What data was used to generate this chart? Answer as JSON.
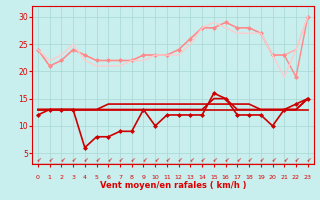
{
  "background_color": "#c8eeed",
  "grid_color": "#a8d8d4",
  "xlabel": "Vent moyen/en rafales ( km/h )",
  "xlabel_color": "#dd0000",
  "tick_color": "#dd0000",
  "x_ticks": [
    0,
    1,
    2,
    3,
    4,
    5,
    6,
    7,
    8,
    9,
    10,
    11,
    12,
    13,
    14,
    15,
    16,
    17,
    18,
    19,
    20,
    21,
    22,
    23
  ],
  "ylim": [
    3,
    32
  ],
  "xlim": [
    -0.5,
    23.5
  ],
  "yticks": [
    5,
    10,
    15,
    20,
    25,
    30
  ],
  "series": [
    {
      "color": "#ffaaaa",
      "linewidth": 1.0,
      "marker": null,
      "data": [
        24,
        21,
        22,
        24,
        23,
        22,
        22,
        22,
        22,
        23,
        23,
        23,
        24,
        26,
        28,
        28,
        29,
        28,
        28,
        27,
        23,
        23,
        24,
        30
      ]
    },
    {
      "color": "#ff8888",
      "linewidth": 1.0,
      "marker": "D",
      "markersize": 2,
      "data": [
        24,
        21,
        22,
        24,
        23,
        22,
        22,
        22,
        22,
        23,
        23,
        23,
        24,
        26,
        28,
        28,
        29,
        28,
        28,
        27,
        23,
        23,
        19,
        30
      ]
    },
    {
      "color": "#ffcccc",
      "linewidth": 1.0,
      "marker": null,
      "data": [
        24,
        22,
        23,
        25,
        22,
        21,
        21,
        21,
        22,
        22,
        23,
        23,
        23,
        25,
        28,
        29,
        28,
        27,
        27,
        27,
        23,
        19,
        24,
        30
      ]
    },
    {
      "color": "#cc0000",
      "linewidth": 1.2,
      "marker": "D",
      "markersize": 2,
      "data": [
        12,
        13,
        13,
        13,
        6,
        8,
        8,
        9,
        9,
        13,
        10,
        12,
        12,
        12,
        12,
        16,
        15,
        12,
        12,
        12,
        10,
        13,
        14,
        15
      ]
    },
    {
      "color": "#cc0000",
      "linewidth": 1.2,
      "marker": null,
      "data": [
        13,
        13,
        13,
        13,
        13,
        13,
        13,
        13,
        13,
        13,
        13,
        13,
        13,
        13,
        13,
        13,
        13,
        13,
        13,
        13,
        13,
        13,
        13,
        13
      ]
    },
    {
      "color": "#cc0000",
      "linewidth": 1.2,
      "marker": null,
      "data": [
        13,
        13,
        13,
        13,
        13,
        13,
        14,
        14,
        14,
        14,
        14,
        14,
        14,
        14,
        14,
        14,
        14,
        14,
        14,
        13,
        13,
        13,
        13,
        15
      ]
    },
    {
      "color": "#cc0000",
      "linewidth": 1.2,
      "marker": null,
      "data": [
        13,
        13,
        13,
        13,
        13,
        13,
        13,
        13,
        13,
        13,
        13,
        13,
        13,
        13,
        13,
        15,
        15,
        13,
        13,
        13,
        13,
        13,
        13,
        15
      ]
    }
  ]
}
